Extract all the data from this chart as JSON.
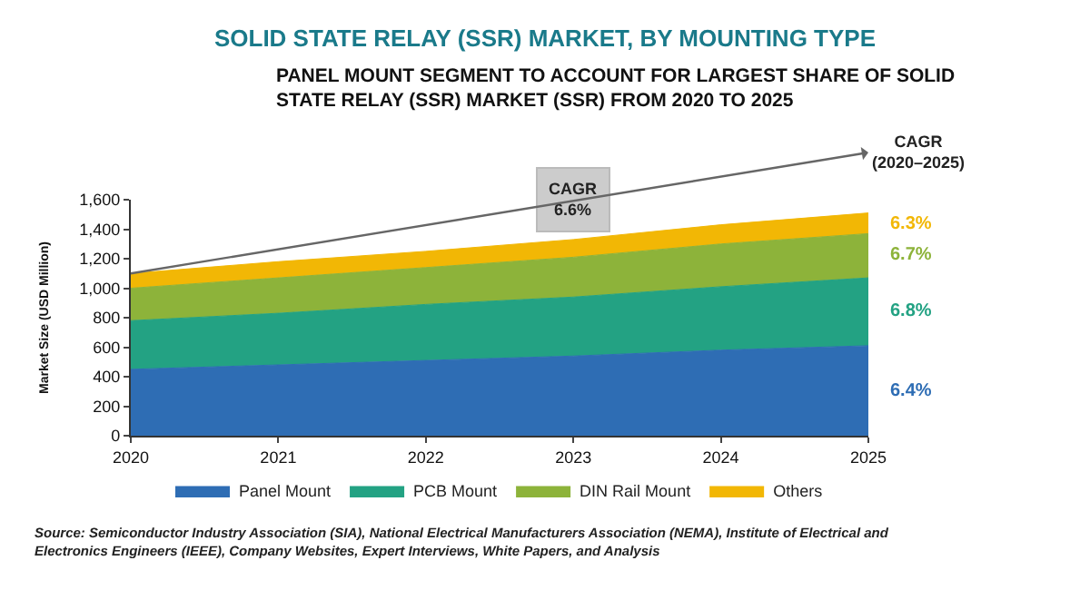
{
  "chart_data": {
    "type": "area",
    "stacked": true,
    "title": "SOLID STATE RELAY (SSR) MARKET, BY MOUNTING TYPE",
    "subtitle": "PANEL MOUNT SEGMENT TO ACCOUNT FOR LARGEST SHARE OF SOLID STATE RELAY (SSR) MARKET (SSR) FROM 2020 TO 2025",
    "ylabel": "Market Size (USD Million)",
    "x": [
      2020,
      2021,
      2022,
      2023,
      2024,
      2025
    ],
    "xlim": [
      2020,
      2025
    ],
    "xticks": [
      2020,
      2021,
      2022,
      2023,
      2024,
      2025
    ],
    "ylim": [
      0,
      1600
    ],
    "yticks": [
      0,
      {
        "value": 200,
        "label": "200"
      },
      {
        "value": 400,
        "label": "400"
      },
      {
        "value": 600,
        "label": "600"
      },
      {
        "value": 800,
        "label": "800"
      },
      {
        "value": 1000,
        "label": "1,000"
      },
      {
        "value": 1200,
        "label": "1,200"
      },
      {
        "value": 1400,
        "label": "1,400"
      },
      {
        "value": 1600,
        "label": "1,600"
      }
    ],
    "series": [
      {
        "name": "Panel Mount",
        "color": "#2e6db4",
        "values": [
          450,
          480,
          510,
          540,
          580,
          610
        ]
      },
      {
        "name": "PCB Mount",
        "color": "#23a283",
        "values": [
          330,
          350,
          380,
          400,
          430,
          460
        ]
      },
      {
        "name": "DIN Rail Mount",
        "color": "#8db33a",
        "values": [
          220,
          240,
          250,
          270,
          290,
          300
        ]
      },
      {
        "name": "Others",
        "color": "#f2b705",
        "values": [
          100,
          110,
          110,
          120,
          130,
          140
        ]
      }
    ],
    "annotations": [
      "6.4%",
      "6.8%",
      "6.7%",
      "6.3%",
      "CAGR\n6.6%",
      "CAGR\n(2020–2025)",
      "Source: Semiconductor Industry Association (SIA), National Electrical Manufacturers Association (NEMA), Institute of Electrical and\nElectronics Engineers (IEEE), Company Websites, Expert Interviews, White Papers, and Analysis"
    ],
    "legend": "bottom"
  }
}
